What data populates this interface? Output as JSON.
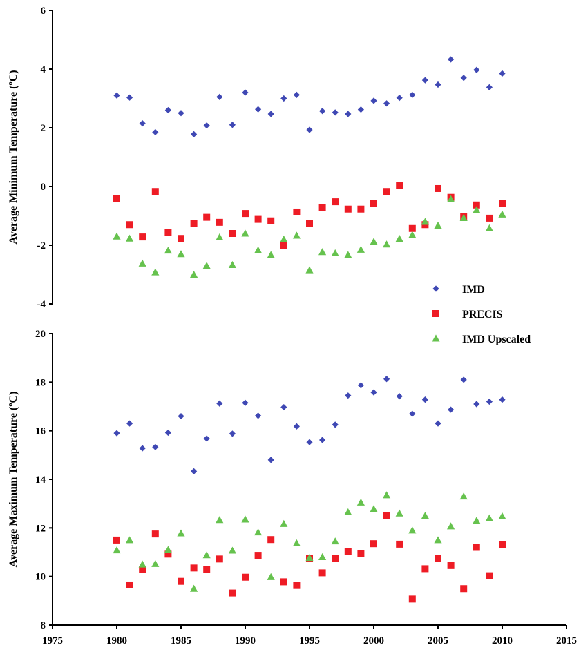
{
  "colors": {
    "IMD": "#3f48b4",
    "PRECIS": "#ee1c25",
    "IMD Upscaled": "#66c24e",
    "axis": "#000000"
  },
  "legend": {
    "placement": "right, between panels",
    "entries": [
      {
        "label": "IMD",
        "marker": "diamond"
      },
      {
        "label": "PRECIS",
        "marker": "square"
      },
      {
        "label": "IMD Upscaled",
        "marker": "triangle"
      }
    ]
  },
  "chart_data": [
    {
      "type": "scatter",
      "title": "",
      "xlabel": "",
      "ylabel": "Average Minimum Temperature (ºC)",
      "xlim": [
        1975,
        2015
      ],
      "ylim": [
        -4,
        6
      ],
      "x_ticks_shown": false,
      "y_ticks": [
        "6",
        "4",
        "2",
        "0",
        "-2",
        "-4"
      ],
      "grid": false,
      "x": [
        1980,
        1981,
        1982,
        1983,
        1984,
        1985,
        1986,
        1987,
        1988,
        1989,
        1990,
        1991,
        1992,
        1993,
        1994,
        1995,
        1996,
        1997,
        1998,
        1999,
        2000,
        2001,
        2002,
        2003,
        2004,
        2005,
        2006,
        2007,
        2008,
        2009,
        2010
      ],
      "series": [
        {
          "name": "IMD",
          "marker": "diamond",
          "values": [
            3.1,
            3.03,
            2.15,
            1.85,
            2.6,
            2.5,
            1.78,
            2.08,
            3.05,
            2.1,
            3.2,
            2.63,
            2.47,
            3.0,
            3.12,
            1.93,
            2.57,
            2.52,
            2.47,
            2.62,
            2.92,
            2.83,
            3.02,
            3.12,
            3.62,
            3.47,
            4.33,
            3.7,
            3.97,
            3.38,
            3.85
          ]
        },
        {
          "name": "PRECIS",
          "marker": "square",
          "values": [
            -0.4,
            -1.3,
            -1.72,
            -0.17,
            -1.57,
            -1.77,
            -1.25,
            -1.05,
            -1.22,
            -1.6,
            -0.92,
            -1.12,
            -1.17,
            -2.0,
            -0.87,
            -1.27,
            -0.72,
            -0.52,
            -0.77,
            -0.77,
            -0.57,
            -0.17,
            0.03,
            -1.43,
            -1.3,
            -0.07,
            -0.37,
            -1.03,
            -0.63,
            -1.08,
            -0.57
          ]
        },
        {
          "name": "IMD Upscaled",
          "marker": "triangle",
          "values": [
            -1.7,
            -1.77,
            -2.62,
            -2.92,
            -2.18,
            -2.3,
            -3.0,
            -2.7,
            -1.73,
            -2.67,
            -1.6,
            -2.17,
            -2.33,
            -1.8,
            -1.67,
            -2.85,
            -2.23,
            -2.27,
            -2.33,
            -2.15,
            -1.88,
            -1.97,
            -1.78,
            -1.65,
            -1.2,
            -1.33,
            -0.43,
            -1.07,
            -0.8,
            -1.42,
            -0.95
          ]
        }
      ]
    },
    {
      "type": "scatter",
      "title": "",
      "xlabel": "",
      "ylabel": "Average Maximum Temperature (ºC)",
      "xlim": [
        1975,
        2015
      ],
      "ylim": [
        8,
        20
      ],
      "x_ticks": [
        "1975",
        "1980",
        "1985",
        "1990",
        "1995",
        "2000",
        "2005",
        "2010",
        "2015"
      ],
      "y_ticks": [
        "20",
        "18",
        "16",
        "14",
        "12",
        "10",
        "8"
      ],
      "grid": false,
      "x": [
        1980,
        1981,
        1982,
        1983,
        1984,
        1985,
        1986,
        1987,
        1988,
        1989,
        1990,
        1991,
        1992,
        1993,
        1994,
        1995,
        1996,
        1997,
        1998,
        1999,
        2000,
        2001,
        2002,
        2003,
        2004,
        2005,
        2006,
        2007,
        2008,
        2009,
        2010
      ],
      "series": [
        {
          "name": "IMD",
          "marker": "diamond",
          "values": [
            15.9,
            16.3,
            15.28,
            15.33,
            15.92,
            16.6,
            14.33,
            15.68,
            17.12,
            15.88,
            17.15,
            16.62,
            14.8,
            16.97,
            16.18,
            15.53,
            15.62,
            16.25,
            17.45,
            17.87,
            17.58,
            18.13,
            17.42,
            16.7,
            17.28,
            16.3,
            16.87,
            18.1,
            17.1,
            17.2,
            17.28
          ]
        },
        {
          "name": "PRECIS",
          "marker": "square",
          "values": [
            11.5,
            9.65,
            10.28,
            11.75,
            10.92,
            9.8,
            10.35,
            10.3,
            10.72,
            9.32,
            9.97,
            10.87,
            11.52,
            9.78,
            9.63,
            10.73,
            10.15,
            10.75,
            11.02,
            10.95,
            11.35,
            12.52,
            11.33,
            9.07,
            10.32,
            10.73,
            10.45,
            9.5,
            11.2,
            10.03,
            11.32
          ]
        },
        {
          "name": "IMD Upscaled",
          "marker": "triangle",
          "values": [
            11.08,
            11.5,
            10.5,
            10.52,
            11.1,
            11.78,
            9.5,
            10.88,
            12.33,
            11.07,
            12.35,
            11.82,
            9.98,
            12.17,
            11.37,
            10.77,
            10.8,
            11.45,
            12.65,
            13.05,
            12.78,
            13.35,
            12.6,
            11.9,
            12.5,
            11.5,
            12.07,
            13.3,
            12.3,
            12.4,
            12.48
          ]
        }
      ]
    }
  ]
}
